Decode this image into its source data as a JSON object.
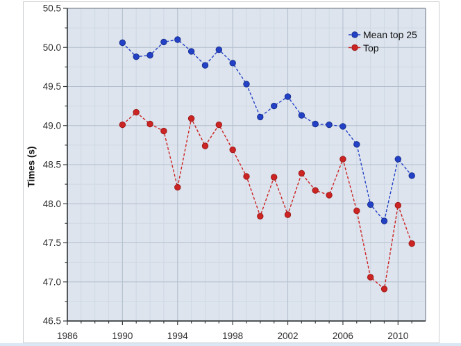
{
  "window": {
    "bg_color": "#ffffff",
    "figure_border_color": "#cbcdd0",
    "bottom_strip_color": "#d9e6f4"
  },
  "chart_data": {
    "type": "line",
    "title": "",
    "xlabel": "",
    "ylabel": "Times (s)",
    "xlim": [
      1986,
      2012
    ],
    "ylim": [
      46.5,
      50.5
    ],
    "x_major_ticks": [
      1986,
      1990,
      1994,
      1998,
      2002,
      2006,
      2010
    ],
    "x_minor_step_years": 1,
    "y_major_ticks": [
      46.5,
      47.0,
      47.5,
      48.0,
      48.5,
      49.0,
      49.5,
      50.0,
      50.5
    ],
    "y_minor_step": 0.25,
    "grid": "major+minor",
    "legend_position": "top-right",
    "line_style": "dashed",
    "marker": "circle",
    "plot_bg_color": "#dde4ee",
    "grid_minor_color": "#cfd8e3",
    "grid_major_color": "#b3bfce",
    "axis_color": "#3a3d40",
    "box_color": "#7e8794",
    "tick_label_color": "#2c2c2c",
    "x": [
      1990,
      1991,
      1992,
      1993,
      1994,
      1995,
      1996,
      1997,
      1998,
      1999,
      2000,
      2001,
      2002,
      2003,
      2004,
      2005,
      2006,
      2007,
      2008,
      2009,
      2010,
      2011
    ],
    "series": [
      {
        "name": "Mean top 25",
        "color": "#2341c6",
        "marker_edge": "#18308f",
        "values": [
          50.06,
          49.88,
          49.9,
          50.07,
          50.1,
          49.95,
          49.77,
          49.97,
          49.8,
          49.53,
          49.11,
          49.25,
          49.37,
          49.13,
          49.02,
          49.01,
          48.99,
          48.76,
          47.99,
          47.78,
          48.57,
          48.36
        ]
      },
      {
        "name": "Top",
        "color": "#cc2423",
        "marker_edge": "#9e1b1a",
        "values": [
          49.01,
          49.17,
          49.02,
          48.93,
          48.21,
          49.09,
          48.74,
          49.01,
          48.69,
          48.35,
          47.84,
          48.34,
          47.86,
          48.39,
          48.17,
          48.11,
          48.57,
          47.91,
          47.06,
          46.91,
          47.98,
          47.49
        ]
      }
    ]
  }
}
